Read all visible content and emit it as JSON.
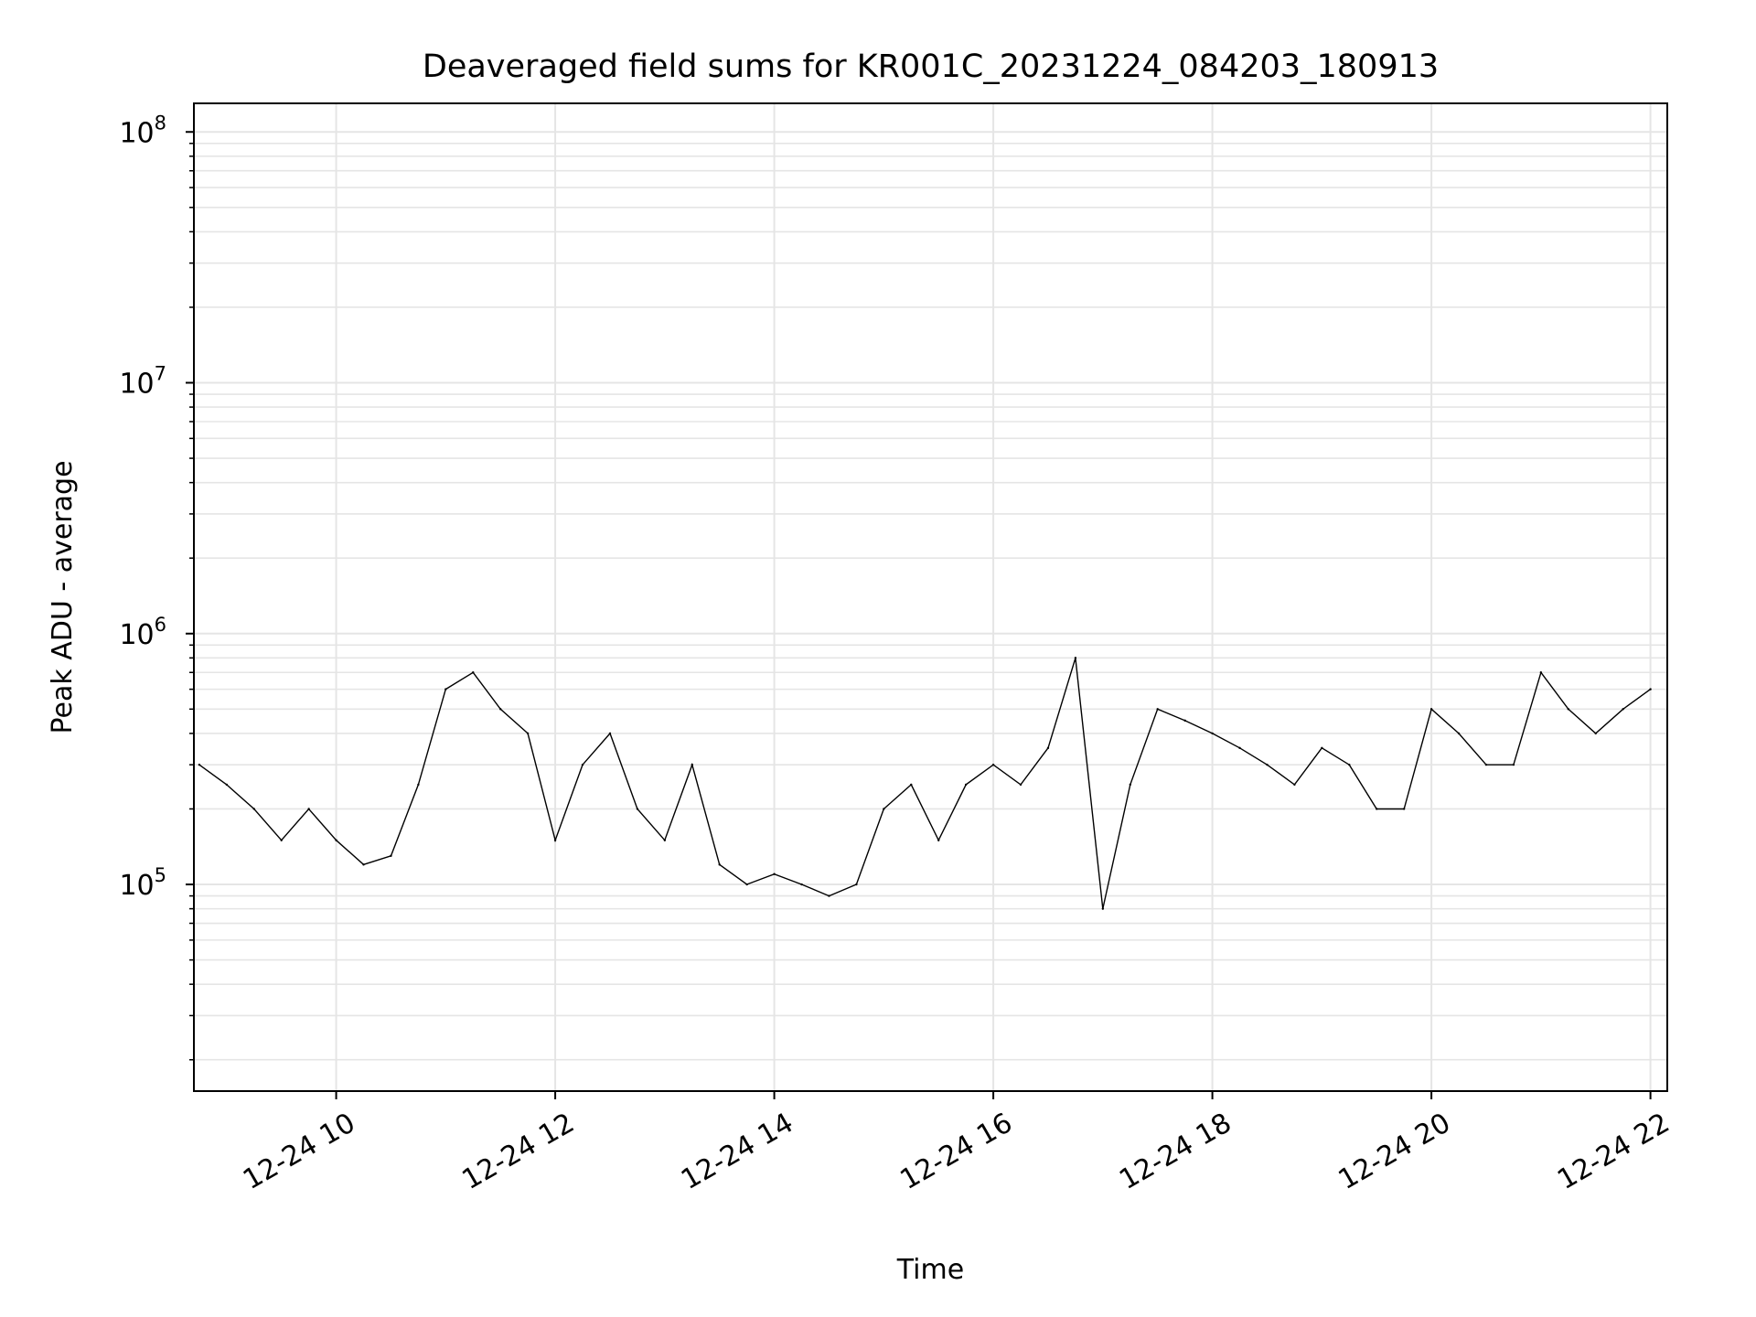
{
  "chart_data": {
    "type": "line",
    "title": "Deaveraged field sums for KR001C_20231224_084203_180913",
    "xlabel": "Time",
    "ylabel": "Peak ADU - average",
    "y_scale": "log",
    "grid": true,
    "grid_minor": true,
    "line_color": "#000000",
    "xlim": [
      "2023-12-24T08:42:03",
      "2023-12-24T22:09:13"
    ],
    "ylim": [
      15000,
      130000000
    ],
    "x_ticks": [
      {
        "value": "2023-12-24T10:00",
        "label": "12-24 10"
      },
      {
        "value": "2023-12-24T12:00",
        "label": "12-24 12"
      },
      {
        "value": "2023-12-24T14:00",
        "label": "12-24 14"
      },
      {
        "value": "2023-12-24T16:00",
        "label": "12-24 16"
      },
      {
        "value": "2023-12-24T18:00",
        "label": "12-24 18"
      },
      {
        "value": "2023-12-24T20:00",
        "label": "12-24 20"
      },
      {
        "value": "2023-12-24T22:00",
        "label": "12-24 22"
      }
    ],
    "y_ticks": [
      {
        "value": 100000,
        "base": "10",
        "exp": "5"
      },
      {
        "value": 1000000,
        "base": "10",
        "exp": "6"
      },
      {
        "value": 10000000,
        "base": "10",
        "exp": "7"
      },
      {
        "value": 100000000,
        "base": "10",
        "exp": "8"
      }
    ],
    "series": [
      {
        "x": [
          "2023-12-24T08:45",
          "2023-12-24T09:00",
          "2023-12-24T09:15",
          "2023-12-24T09:30",
          "2023-12-24T09:45",
          "2023-12-24T10:00",
          "2023-12-24T10:15",
          "2023-12-24T10:30",
          "2023-12-24T10:45",
          "2023-12-24T11:00",
          "2023-12-24T11:15",
          "2023-12-24T11:30",
          "2023-12-24T11:45",
          "2023-12-24T12:00",
          "2023-12-24T12:15",
          "2023-12-24T12:30",
          "2023-12-24T12:45",
          "2023-12-24T13:00",
          "2023-12-24T13:15",
          "2023-12-24T13:30",
          "2023-12-24T13:45",
          "2023-12-24T14:00",
          "2023-12-24T14:15",
          "2023-12-24T14:30",
          "2023-12-24T14:45",
          "2023-12-24T15:00",
          "2023-12-24T15:15",
          "2023-12-24T15:30",
          "2023-12-24T15:45",
          "2023-12-24T16:00",
          "2023-12-24T16:15",
          "2023-12-24T16:30",
          "2023-12-24T16:45",
          "2023-12-24T17:00",
          "2023-12-24T17:15",
          "2023-12-24T17:30",
          "2023-12-24T17:45",
          "2023-12-24T18:00",
          "2023-12-24T18:15",
          "2023-12-24T18:30",
          "2023-12-24T18:45",
          "2023-12-24T19:00",
          "2023-12-24T19:15",
          "2023-12-24T19:30",
          "2023-12-24T19:45",
          "2023-12-24T20:00",
          "2023-12-24T20:15",
          "2023-12-24T20:30",
          "2023-12-24T20:45",
          "2023-12-24T21:00",
          "2023-12-24T21:15",
          "2023-12-24T21:30",
          "2023-12-24T21:45",
          "2023-12-24T22:00"
        ],
        "y": [
          300000,
          250000,
          200000,
          150000,
          200000,
          150000,
          120000,
          130000,
          250000,
          600000,
          700000,
          500000,
          400000,
          150000,
          300000,
          400000,
          200000,
          150000,
          300000,
          120000,
          100000,
          110000,
          100000,
          90000,
          100000,
          200000,
          250000,
          150000,
          250000,
          300000,
          250000,
          350000,
          800000,
          80000,
          250000,
          500000,
          450000,
          400000,
          350000,
          300000,
          250000,
          350000,
          300000,
          200000,
          200000,
          500000,
          400000,
          300000,
          300000,
          700000,
          500000,
          400000,
          500000,
          600000
        ]
      }
    ]
  }
}
